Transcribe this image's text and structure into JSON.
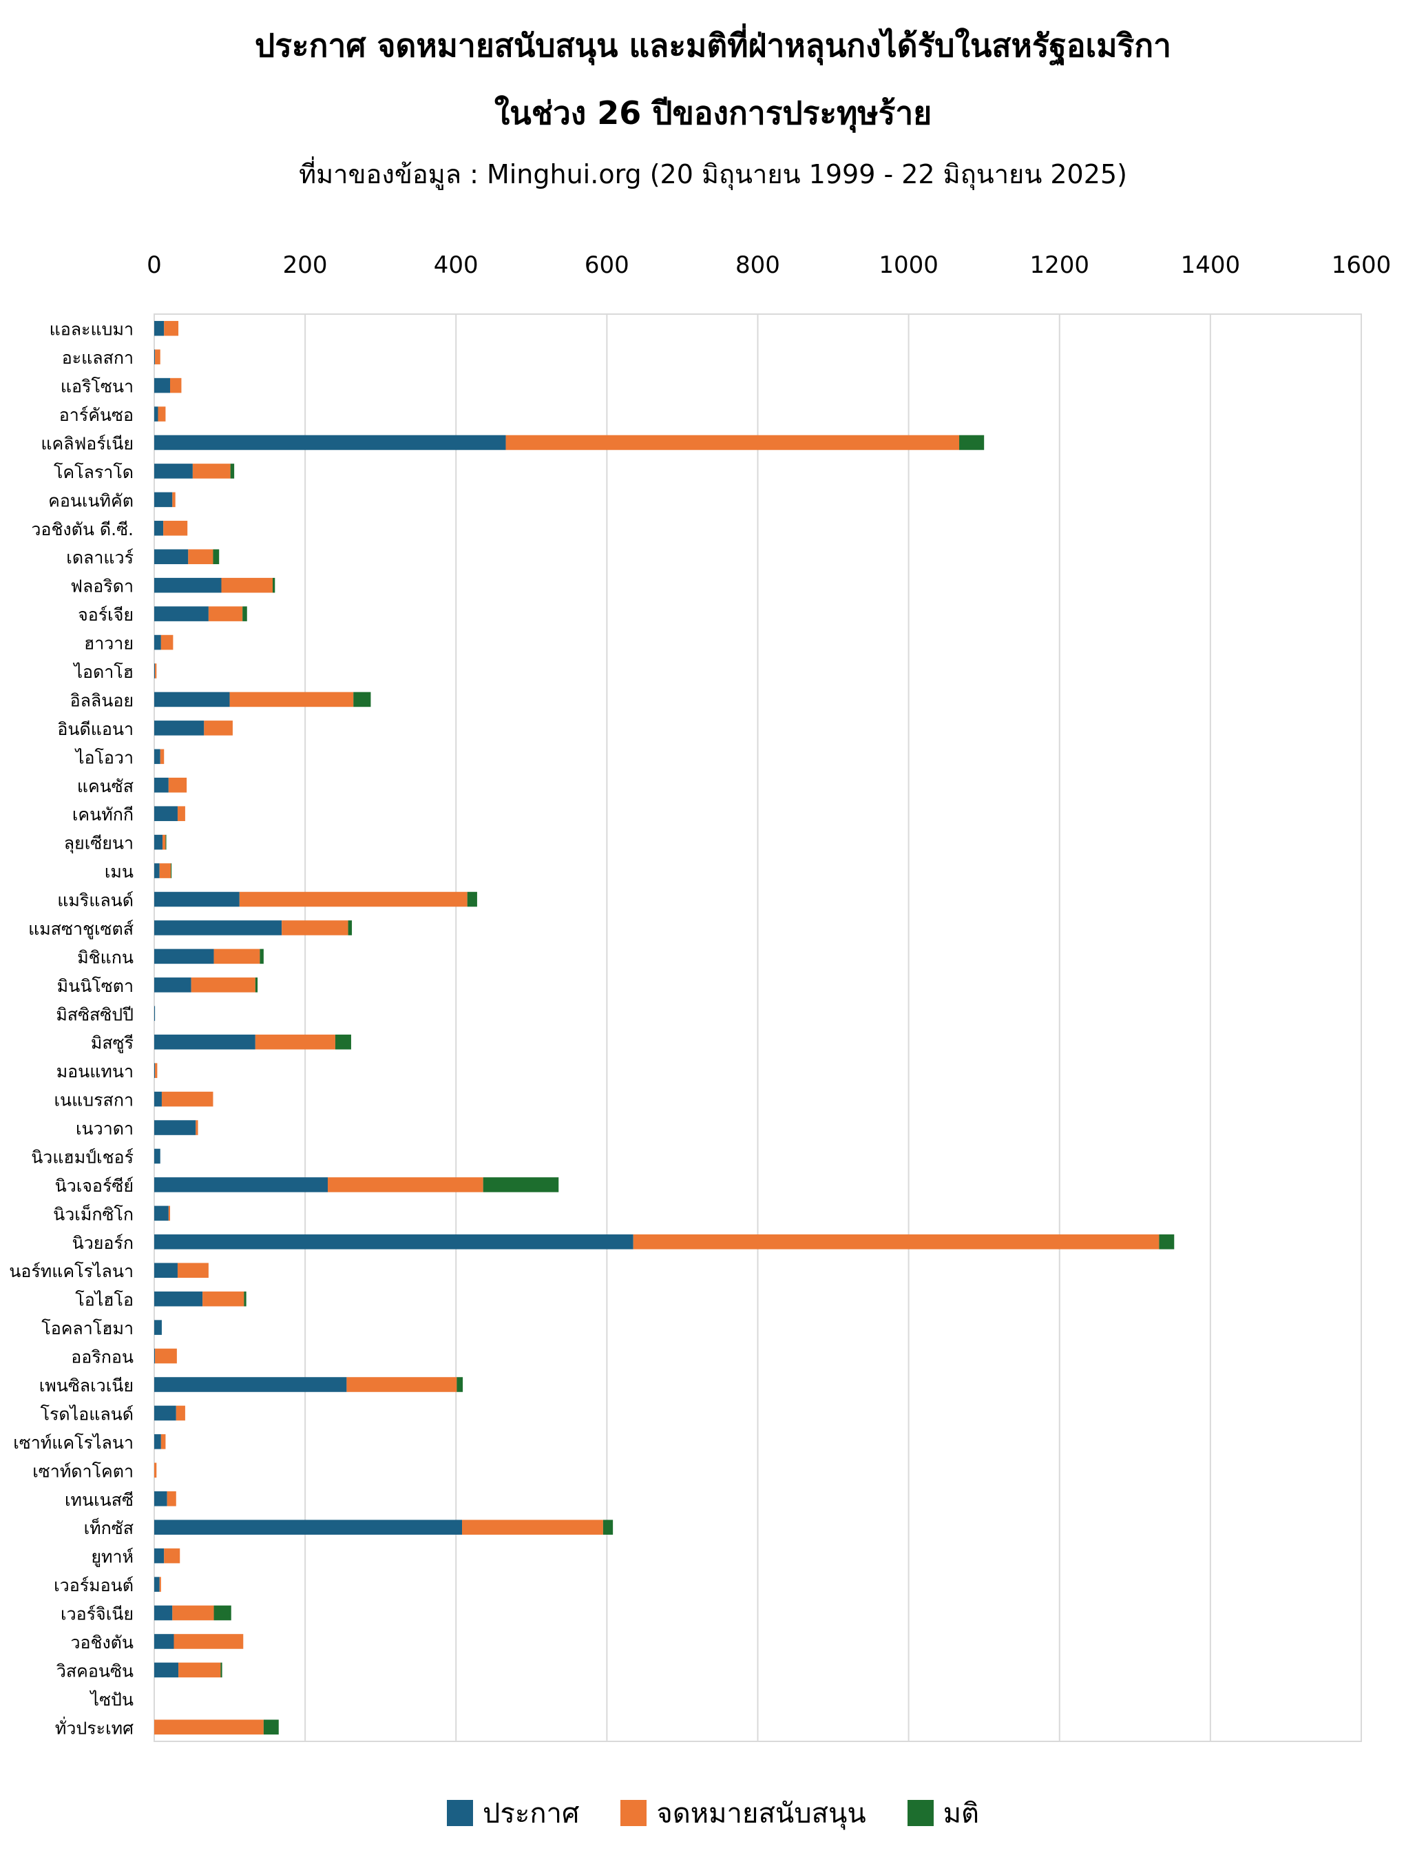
{
  "title_line1": "ประกาศ จดหมายสนับสนุน และมติที่ฝ่าหลุนกงได้รับในสหรัฐอเมริกา",
  "title_line2": "ในช่วง 26 ปีของการประทุษร้าย",
  "subtitle": "ที่มาของข้อมูล : Minghui.org (20 มิถุนายน 1999 - 22 มิถุนายน 2025)",
  "colors": {
    "ประกาศ": "#1b5f84",
    "จดหมายสนับสนุน": "#ed7834",
    "มติ": "#1d6e2e",
    "grid": "#d9d9d9"
  },
  "chart_data": {
    "type": "bar",
    "orientation": "horizontal",
    "stacked": true,
    "xlim": [
      0,
      1600
    ],
    "x_ticks": [
      0,
      200,
      400,
      600,
      800,
      1000,
      1200,
      1400,
      1600
    ],
    "grid": true,
    "legend_position": "bottom",
    "categories": [
      "แอละแบมา",
      "อะแลสกา",
      "แอริโซนา",
      "อาร์คันซอ",
      "แคลิฟอร์เนีย",
      "โคโลราโด",
      "คอนเนทิคัต",
      "วอชิงตัน ดี.ซี.",
      "เดลาแวร์",
      "ฟลอริดา",
      "จอร์เจีย",
      "ฮาวาย",
      "ไอดาโฮ",
      "อิลลินอย",
      "อินดีแอนา",
      "ไอโอวา",
      "แคนซัส",
      "เคนทักกี",
      "ลุยเซียนา",
      "เมน",
      "แมริแลนด์",
      "แมสซาชูเซตส์",
      "มิชิแกน",
      "มินนิโซตา",
      "มิสซิสซิปปี",
      "มิสซูรี",
      "มอนแทนา",
      "เนแบรสกา",
      "เนวาดา",
      "นิวแฮมป์เชอร์",
      "นิวเจอร์ซีย์",
      "นิวเม็กซิโก",
      "นิวยอร์ก",
      "นอร์ทแคโรไลนา",
      "โอไฮโอ",
      "โอคลาโฮมา",
      "ออริกอน",
      "เพนซิลเวเนีย",
      "โรดไอแลนด์",
      "เซาท์แคโรไลนา",
      "เซาท์ดาโคตา",
      "เทนเนสซี",
      "เท็กซัส",
      "ยูทาห์",
      "เวอร์มอนต์",
      "เวอร์จิเนีย",
      "วอชิงตัน",
      "วิสคอนซิน",
      "ไซปัน",
      "ทั่วประเทศ"
    ],
    "series": [
      {
        "name": "ประกาศ",
        "values": [
          13,
          1,
          21,
          5,
          466,
          51,
          24,
          12,
          45,
          89,
          72,
          9,
          1,
          100,
          66,
          8,
          19,
          31,
          11,
          7,
          113,
          169,
          79,
          49,
          1,
          134,
          1,
          10,
          55,
          8,
          230,
          19,
          635,
          31,
          64,
          10,
          1,
          255,
          29,
          9,
          0,
          17,
          408,
          13,
          7,
          24,
          26,
          32,
          0,
          0
        ]
      },
      {
        "name": "จดหมายสนับสนุน",
        "values": [
          19,
          7,
          15,
          10,
          601,
          50,
          4,
          32,
          33,
          68,
          45,
          16,
          2,
          164,
          38,
          5,
          24,
          10,
          4,
          15,
          302,
          88,
          61,
          85,
          0,
          106,
          3,
          68,
          3,
          0,
          206,
          2,
          697,
          41,
          55,
          0,
          29,
          146,
          12,
          6,
          3,
          12,
          187,
          21,
          2,
          55,
          92,
          56,
          0,
          145
        ]
      },
      {
        "name": "มติ",
        "values": [
          0,
          0,
          0,
          0,
          33,
          5,
          0,
          0,
          8,
          3,
          6,
          0,
          0,
          23,
          0,
          0,
          0,
          0,
          1,
          1,
          13,
          5,
          5,
          3,
          0,
          21,
          0,
          0,
          0,
          0,
          100,
          0,
          20,
          0,
          3,
          0,
          0,
          8,
          0,
          0,
          0,
          0,
          13,
          0,
          0,
          23,
          0,
          2,
          0,
          20
        ]
      }
    ]
  }
}
